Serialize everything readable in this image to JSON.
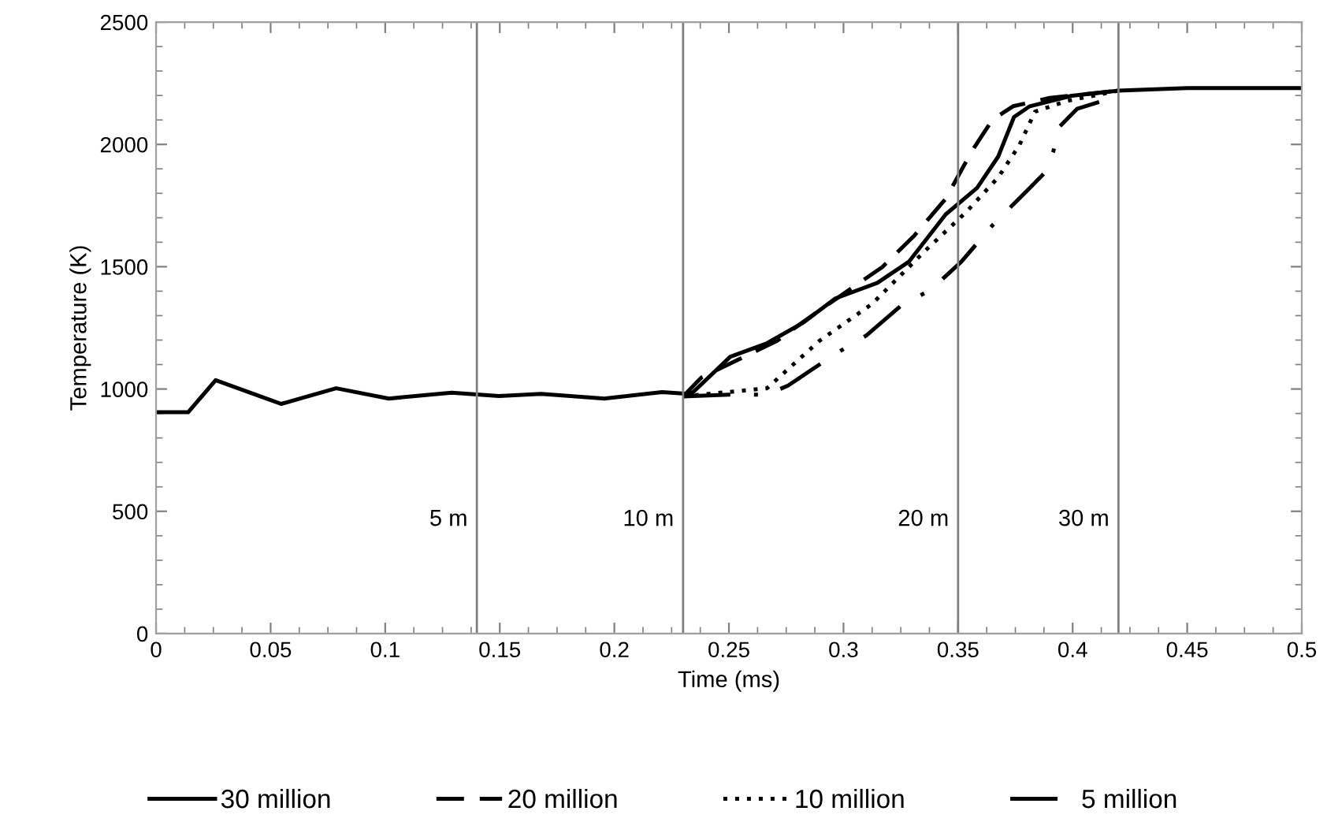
{
  "chart_data": {
    "type": "line",
    "xlabel": "Time (ms)",
    "ylabel": "Temperature (K)",
    "xlim": [
      0,
      0.5
    ],
    "ylim": [
      0,
      2500
    ],
    "xticks": [
      0,
      0.05,
      0.1,
      0.15,
      0.2,
      0.25,
      0.3,
      0.35,
      0.4,
      0.45,
      0.5
    ],
    "yticks": [
      0,
      500,
      1000,
      1500,
      2000,
      2500
    ],
    "grid": false,
    "legend": "bottom",
    "marker": "none",
    "ref_lines": [
      {
        "axis": "x",
        "value": 0.14,
        "label": "5 m",
        "color": "#808080"
      },
      {
        "axis": "x",
        "value": 0.23,
        "label": "10 m",
        "color": "#808080"
      },
      {
        "axis": "x",
        "value": 0.35,
        "label": "20 m",
        "color": "#808080"
      },
      {
        "axis": "x",
        "value": 0.42,
        "label": "30 m",
        "color": "#808080"
      }
    ],
    "series": [
      {
        "name": "30 million",
        "color": "#000000",
        "line_style": "solid",
        "x": [
          0,
          0.014,
          0.026,
          0.0546,
          0.0786,
          0.1016,
          0.129,
          0.1497,
          0.168,
          0.1955,
          0.2208,
          0.2322,
          0.2345,
          0.2506,
          0.2666,
          0.2827,
          0.2964,
          0.3148,
          0.3285,
          0.3446,
          0.3583,
          0.3675,
          0.3744,
          0.3813,
          0.3996,
          0.42,
          0.45,
          0.5
        ],
        "values": [
          905,
          905,
          1036,
          939,
          1003,
          961,
          985,
          971,
          980,
          961,
          987,
          980,
          988,
          1132,
          1187,
          1273,
          1370,
          1434,
          1520,
          1714,
          1822,
          1950,
          2112,
          2156,
          2199,
          2220,
          2230,
          2230
        ]
      },
      {
        "name": "20 million",
        "color": "#000000",
        "line_style": "dashed",
        "x": [
          0.23,
          0.238,
          0.271,
          0.287,
          0.317,
          0.331,
          0.3446,
          0.356,
          0.365,
          0.374,
          0.39,
          0.42
        ],
        "values": [
          970,
          1047,
          1197,
          1305,
          1499,
          1628,
          1778,
          1972,
          2101,
          2156,
          2190,
          2220
        ]
      },
      {
        "name": "10 million",
        "color": "#000000",
        "line_style": "dotted",
        "x": [
          0.23,
          0.2666,
          0.2895,
          0.3125,
          0.3354,
          0.3537,
          0.3675,
          0.3766,
          0.3836,
          0.3973,
          0.42
        ],
        "values": [
          970,
          1003,
          1197,
          1348,
          1563,
          1725,
          1865,
          1994,
          2134,
          2177,
          2220
        ]
      },
      {
        "name": "5 million",
        "color": "#000000",
        "line_style": "dashdot",
        "x": [
          0.23,
          0.25,
          0.2666,
          0.2758,
          0.2964,
          0.31,
          0.326,
          0.3377,
          0.3514,
          0.3652,
          0.3813,
          0.388,
          0.3916,
          0.3939,
          0.4019,
          0.42
        ],
        "values": [
          970,
          977,
          977,
          1014,
          1143,
          1219,
          1348,
          1402,
          1520,
          1671,
          1822,
          1886,
          1972,
          2069,
          2145,
          2199
        ]
      }
    ]
  }
}
